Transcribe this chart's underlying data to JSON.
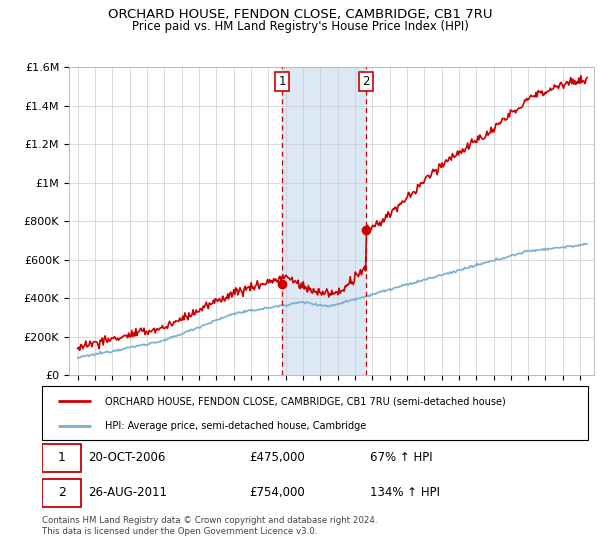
{
  "title": "ORCHARD HOUSE, FENDON CLOSE, CAMBRIDGE, CB1 7RU",
  "subtitle": "Price paid vs. HM Land Registry's House Price Index (HPI)",
  "legend_line1": "ORCHARD HOUSE, FENDON CLOSE, CAMBRIDGE, CB1 7RU (semi-detached house)",
  "legend_line2": "HPI: Average price, semi-detached house, Cambridge",
  "footer": "Contains HM Land Registry data © Crown copyright and database right 2024.\nThis data is licensed under the Open Government Licence v3.0.",
  "transaction1_date": "20-OCT-2006",
  "transaction1_price": "£475,000",
  "transaction1_hpi": "67% ↑ HPI",
  "transaction2_date": "26-AUG-2011",
  "transaction2_price": "£754,000",
  "transaction2_hpi": "134% ↑ HPI",
  "hpi_color": "#7ab0d4",
  "price_color": "#cc0000",
  "highlight_color": "#dce9f5",
  "ylim": [
    0,
    1600000
  ],
  "yticks": [
    0,
    200000,
    400000,
    600000,
    800000,
    1000000,
    1200000,
    1400000,
    1600000
  ],
  "ytick_labels": [
    "£0",
    "£200K",
    "£400K",
    "£600K",
    "£800K",
    "£1M",
    "£1.2M",
    "£1.4M",
    "£1.6M"
  ],
  "transaction1_x": 2006.8,
  "transaction1_y": 475000,
  "transaction2_x": 2011.65,
  "transaction2_y": 754000,
  "highlight_x1": 2006.8,
  "highlight_x2": 2011.65,
  "xmin": 1995.0,
  "xmax": 2024.5
}
